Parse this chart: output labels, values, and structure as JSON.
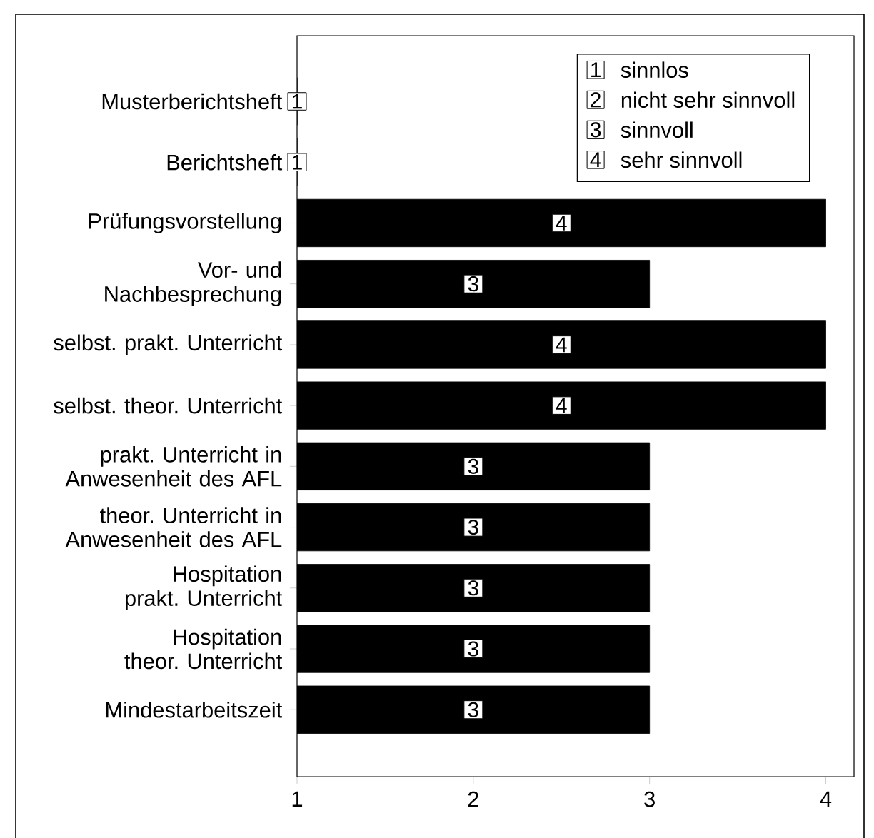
{
  "chart_data": {
    "type": "bar",
    "orientation": "horizontal",
    "categories": [
      "Musterberichtsheft",
      "Berichtsheft",
      "Prüfungsvorstellung",
      "Vor- und Nachbesprechung",
      "selbst. prakt. Unterricht",
      "selbst. theor. Unterricht",
      "prakt. Unterricht in Anwesenheit des AFL",
      "theor. Unterricht in Anwesenheit des AFL",
      "Hospitation prakt. Unterricht",
      "Hospitation theor. Unterricht",
      "Mindestarbeitszeit"
    ],
    "values": [
      1,
      1,
      4,
      3,
      4,
      4,
      3,
      3,
      3,
      3,
      3
    ],
    "value_labels": [
      "1",
      "1",
      "4",
      "3",
      "4",
      "4",
      "3",
      "3",
      "3",
      "3",
      "3"
    ],
    "color": "#000000",
    "xlim": [
      1,
      4.16
    ],
    "xticks": [
      1,
      2,
      3,
      4
    ],
    "annotations": [
      "1",
      "sinnlos",
      "2",
      "nicht sehr sinnvoll",
      "3",
      "sinnvoll",
      "4",
      "sehr sinnvoll"
    ]
  }
}
